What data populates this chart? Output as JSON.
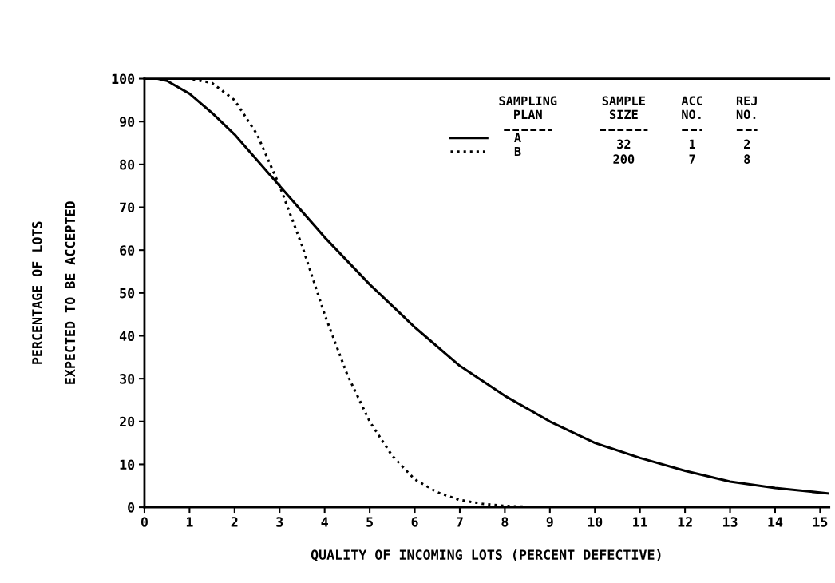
{
  "chart_data": {
    "type": "line",
    "xlabel": "QUALITY OF INCOMING LOTS (PERCENT DEFECTIVE)",
    "ylabel": "PERCENTAGE OF LOTS\nEXPECTED TO BE ACCEPTED",
    "xlim": [
      0,
      15.2
    ],
    "ylim": [
      0,
      100
    ],
    "xticks": [
      0,
      1,
      2,
      3,
      4,
      5,
      6,
      7,
      8,
      9,
      10,
      11,
      12,
      13,
      14,
      15
    ],
    "yticks": [
      0,
      10,
      20,
      30,
      40,
      50,
      60,
      70,
      80,
      90,
      100
    ],
    "grid": false,
    "legend": "top right",
    "marker": "none",
    "series": [
      {
        "name": "A",
        "color": "#000000",
        "line_style": "solid",
        "x": [
          0.3,
          0.5,
          1,
          1.5,
          2,
          2.5,
          3,
          3.5,
          4,
          5,
          6,
          7,
          8,
          9,
          10,
          11,
          12,
          13,
          14,
          15.2
        ],
        "values": [
          100,
          99.5,
          96.5,
          92,
          87,
          81,
          75,
          69,
          63,
          52,
          42,
          33,
          26,
          20,
          15,
          11.5,
          8.5,
          6,
          4.5,
          3.2
        ]
      },
      {
        "name": "B",
        "color": "#000000",
        "line_style": "dotted",
        "x": [
          0.5,
          1,
          1.5,
          2,
          2.5,
          3,
          3.5,
          4,
          4.5,
          5,
          5.5,
          6,
          6.5,
          7,
          7.5,
          8,
          8.5,
          9
        ],
        "values": [
          100,
          100,
          99,
          95,
          87,
          75,
          61,
          45,
          31,
          20,
          12,
          6.5,
          3.5,
          1.7,
          0.8,
          0.3,
          0.1,
          0
        ]
      }
    ],
    "annotations": [
      "SAMPLING\nPLAN",
      "SAMPLE\nSIZE",
      "ACC\nNO.",
      "REJ\nNO.",
      "32",
      "200",
      "1",
      "7",
      "2",
      "8"
    ]
  }
}
